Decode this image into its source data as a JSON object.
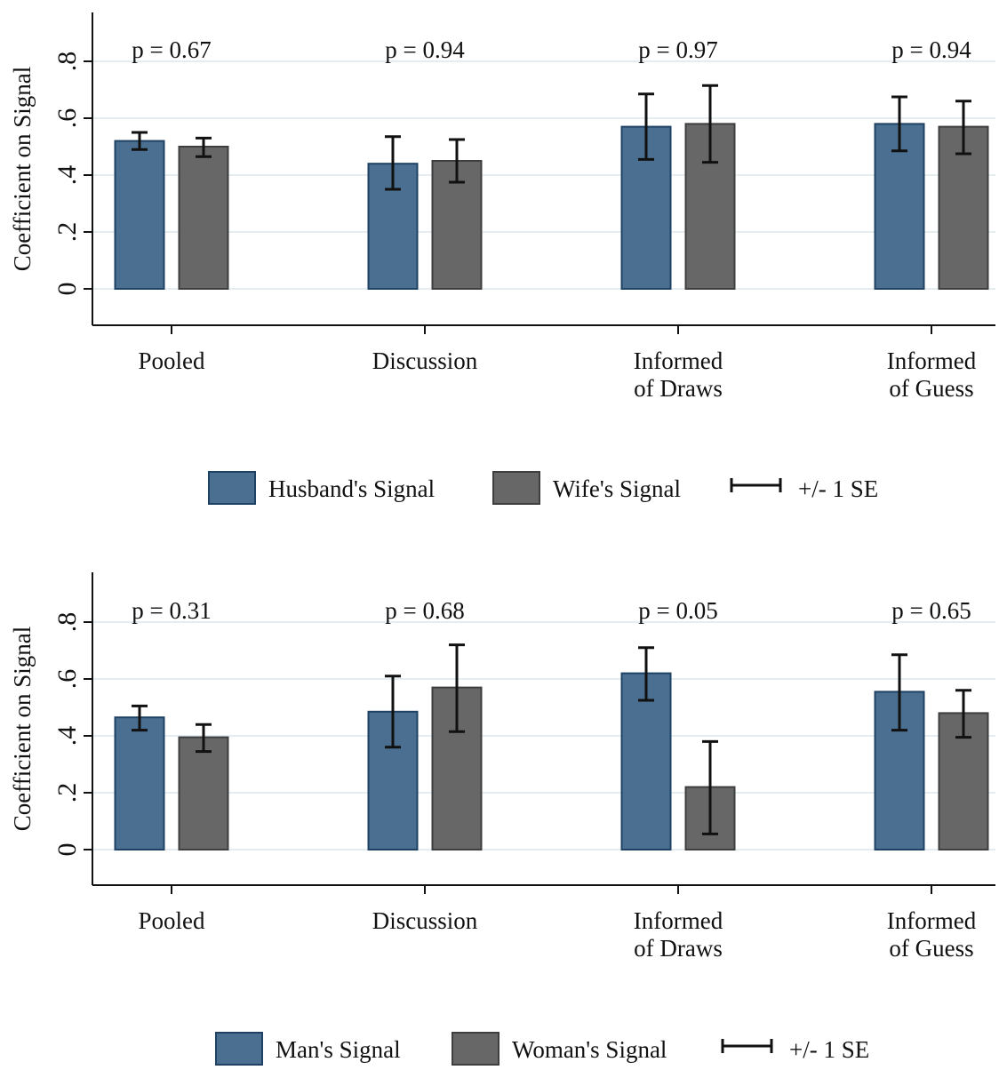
{
  "chart_data": [
    {
      "type": "bar",
      "ylabel": "Coefficient on Signal",
      "ylim": [
        -0.13,
        0.98
      ],
      "yticks": [
        0,
        0.2,
        0.4,
        0.6,
        0.8
      ],
      "ytick_labels": [
        "0",
        ".2",
        ".4",
        ".6",
        ".8"
      ],
      "grid": true,
      "categories": [
        {
          "lines": [
            "Pooled"
          ]
        },
        {
          "lines": [
            "Discussion"
          ]
        },
        {
          "lines": [
            "Informed",
            "of Draws"
          ]
        },
        {
          "lines": [
            "Informed",
            "of Guess"
          ]
        }
      ],
      "annotations": [
        "p = 0.67",
        "p = 0.94",
        "p = 0.97",
        "p = 0.94"
      ],
      "series": [
        {
          "name": "Husband's Signal",
          "color": "#4a6f90",
          "edge": "#1f4264",
          "values": [
            0.52,
            0.44,
            0.57,
            0.58
          ],
          "err_low": [
            0.49,
            0.35,
            0.455,
            0.485
          ],
          "err_high": [
            0.55,
            0.535,
            0.685,
            0.675
          ]
        },
        {
          "name": "Wife's Signal",
          "color": "#676767",
          "edge": "#3e3e3e",
          "values": [
            0.5,
            0.45,
            0.58,
            0.57
          ],
          "err_low": [
            0.465,
            0.375,
            0.445,
            0.475
          ],
          "err_high": [
            0.53,
            0.525,
            0.715,
            0.66
          ]
        }
      ],
      "legend": {
        "position": "bottom",
        "error_label": "+/- 1 SE"
      }
    },
    {
      "type": "bar",
      "ylabel": "Coefficient on Signal",
      "ylim": [
        -0.13,
        0.98
      ],
      "yticks": [
        0,
        0.2,
        0.4,
        0.6,
        0.8
      ],
      "ytick_labels": [
        "0",
        ".2",
        ".4",
        ".6",
        ".8"
      ],
      "grid": true,
      "categories": [
        {
          "lines": [
            "Pooled"
          ]
        },
        {
          "lines": [
            "Discussion"
          ]
        },
        {
          "lines": [
            "Informed",
            "of Draws"
          ]
        },
        {
          "lines": [
            "Informed",
            "of Guess"
          ]
        }
      ],
      "annotations": [
        "p = 0.31",
        "p = 0.68",
        "p = 0.05",
        "p = 0.65"
      ],
      "series": [
        {
          "name": "Man's Signal",
          "color": "#4a6f90",
          "edge": "#1f4264",
          "values": [
            0.465,
            0.485,
            0.62,
            0.555
          ],
          "err_low": [
            0.42,
            0.36,
            0.525,
            0.42
          ],
          "err_high": [
            0.505,
            0.61,
            0.71,
            0.685
          ]
        },
        {
          "name": "Woman's Signal",
          "color": "#676767",
          "edge": "#3e3e3e",
          "values": [
            0.395,
            0.57,
            0.22,
            0.48
          ],
          "err_low": [
            0.345,
            0.415,
            0.055,
            0.395
          ],
          "err_high": [
            0.44,
            0.72,
            0.38,
            0.56
          ]
        }
      ],
      "legend": {
        "position": "bottom",
        "error_label": "+/- 1 SE"
      }
    }
  ]
}
